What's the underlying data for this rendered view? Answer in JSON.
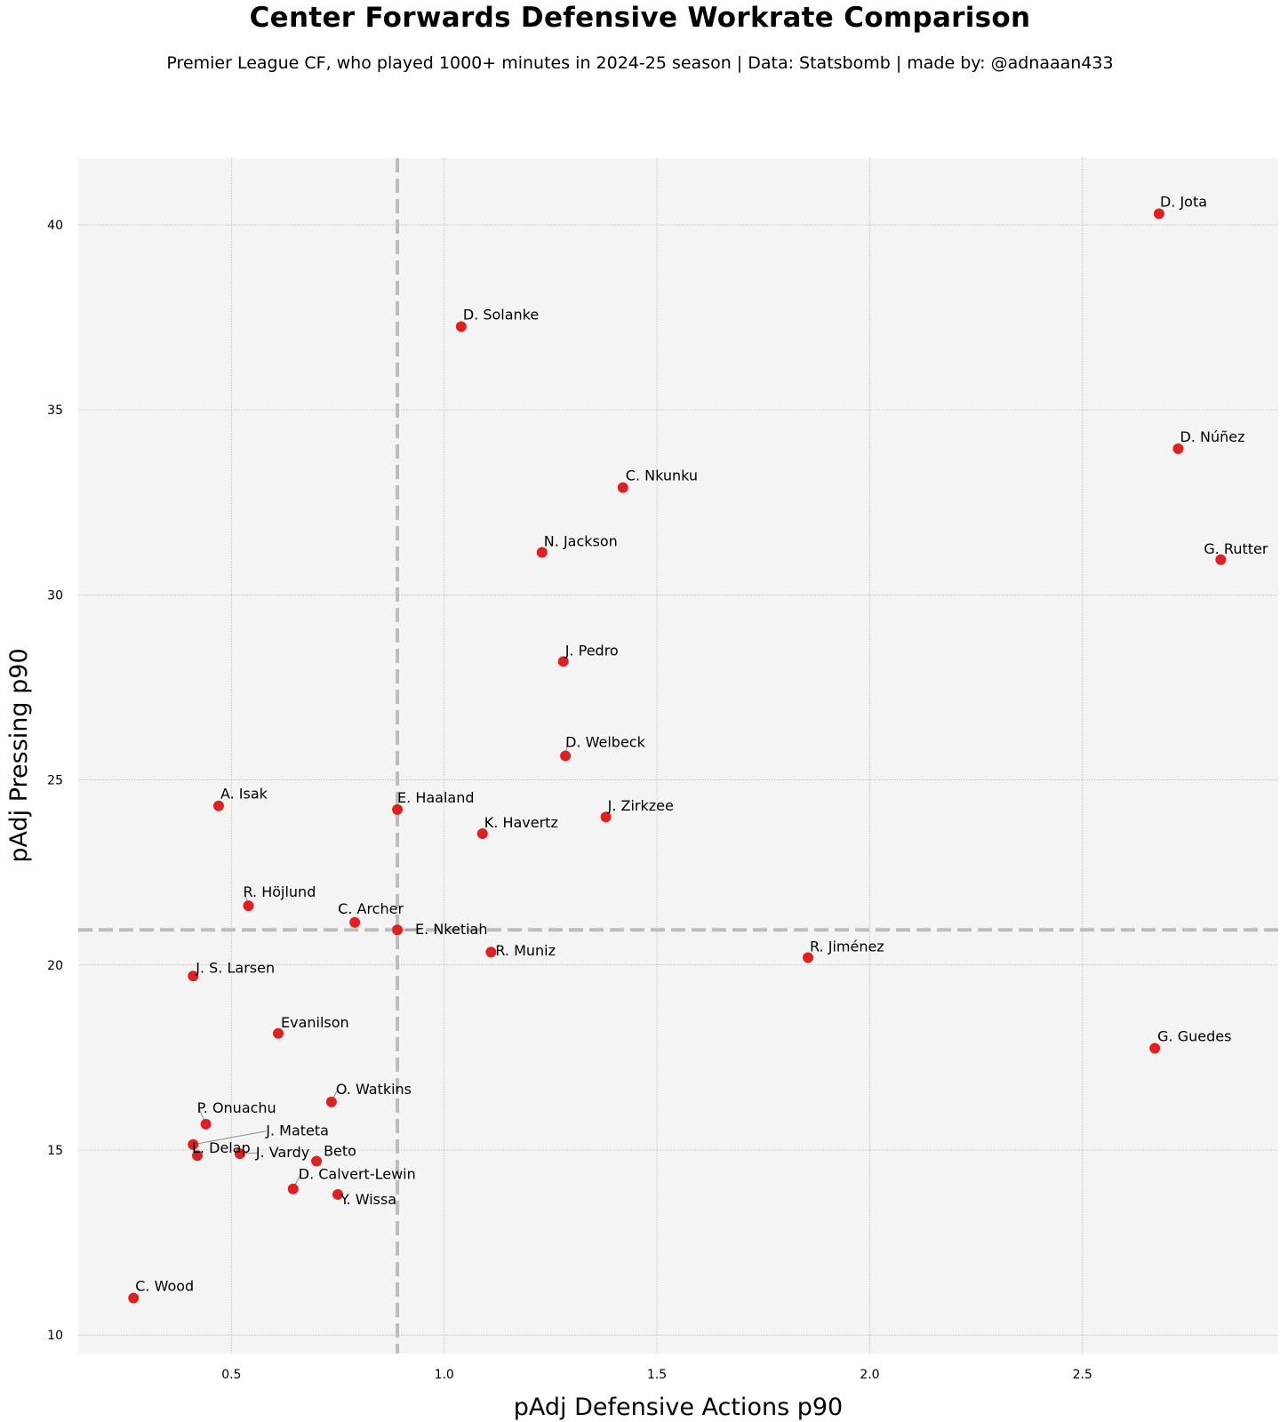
{
  "chart_data": {
    "type": "scatter",
    "title": "Center Forwards Defensive Workrate Comparison",
    "subtitle": "Premier League CF, who played 1000+ minutes in 2024-25 season  |  Data: Statsbomb  |  made by: @adnaaan433",
    "xlabel": "pAdj Defensive Actions p90",
    "ylabel": "pAdj Pressing p90",
    "xlim": [
      0.14,
      2.96
    ],
    "ylim": [
      9.5,
      41.8
    ],
    "xticks": [
      "0.5",
      "1.0",
      "1.5",
      "2.0",
      "2.5"
    ],
    "yticks": [
      "10",
      "15",
      "20",
      "25",
      "30",
      "35",
      "40"
    ],
    "grid": true,
    "marker_color": "#e02020",
    "reference_lines": {
      "x": 0.89,
      "y": 20.95
    },
    "points": [
      {
        "label": "D. Jota",
        "x": 2.68,
        "y": 40.3
      },
      {
        "label": "D. Solanke",
        "x": 1.04,
        "y": 37.25
      },
      {
        "label": "D. Núñez",
        "x": 2.725,
        "y": 33.95
      },
      {
        "label": "C. Nkunku",
        "x": 1.42,
        "y": 32.9
      },
      {
        "label": "N. Jackson",
        "x": 1.23,
        "y": 31.15
      },
      {
        "label": "G. Rutter",
        "x": 2.825,
        "y": 30.95
      },
      {
        "label": "J. Pedro",
        "x": 1.28,
        "y": 28.2
      },
      {
        "label": "D. Welbeck",
        "x": 1.285,
        "y": 25.65
      },
      {
        "label": "A. Isak",
        "x": 0.47,
        "y": 24.3
      },
      {
        "label": "E. Haaland",
        "x": 0.89,
        "y": 24.2
      },
      {
        "label": "J. Zirkzee",
        "x": 1.38,
        "y": 24.0
      },
      {
        "label": "K. Havertz",
        "x": 1.09,
        "y": 23.55
      },
      {
        "label": "R. Höjlund",
        "x": 0.54,
        "y": 21.6
      },
      {
        "label": "C. Archer",
        "x": 0.79,
        "y": 21.15
      },
      {
        "label": "E. Nketiah",
        "x": 0.89,
        "y": 20.95
      },
      {
        "label": "R. Muniz",
        "x": 1.11,
        "y": 20.35
      },
      {
        "label": "R. Jiménez",
        "x": 1.855,
        "y": 20.2
      },
      {
        "label": "J. S. Larsen",
        "x": 0.41,
        "y": 19.7
      },
      {
        "label": "Evanilson",
        "x": 0.61,
        "y": 18.15
      },
      {
        "label": "G. Guedes",
        "x": 2.67,
        "y": 17.75
      },
      {
        "label": "O. Watkins",
        "x": 0.735,
        "y": 16.3
      },
      {
        "label": "P. Onuachu",
        "x": 0.44,
        "y": 15.7
      },
      {
        "label": "J. Mateta",
        "x": 0.41,
        "y": 15.15
      },
      {
        "label": "L. Delap",
        "x": 0.42,
        "y": 14.85
      },
      {
        "label": "J. Vardy",
        "x": 0.52,
        "y": 14.9
      },
      {
        "label": "Beto",
        "x": 0.7,
        "y": 14.7
      },
      {
        "label": "D. Calvert-Lewin",
        "x": 0.645,
        "y": 13.95
      },
      {
        "label": "Y. Wissa",
        "x": 0.75,
        "y": 13.8
      },
      {
        "label": "C. Wood",
        "x": 0.27,
        "y": 11.0
      }
    ]
  }
}
